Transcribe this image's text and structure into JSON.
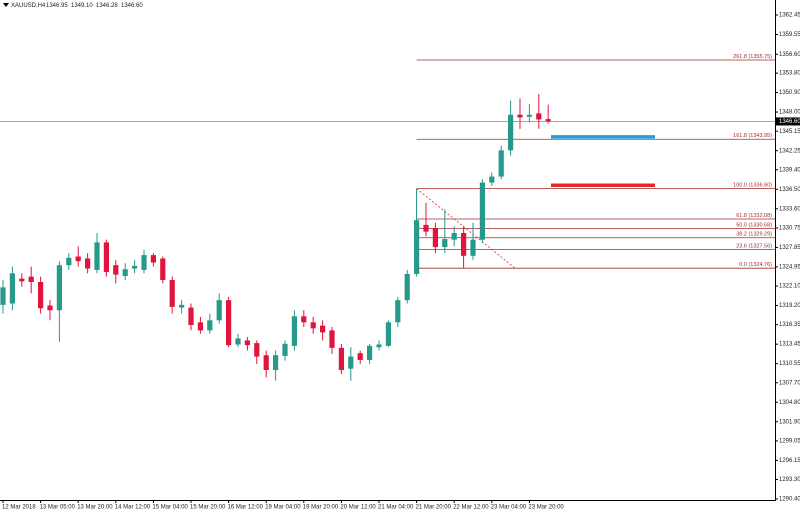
{
  "chart_data": {
    "type": "candlestick",
    "title": "XAUUSD,H4",
    "ohlc_label": [
      "1346.95",
      "1349.10",
      "1346.28",
      "1346.60"
    ],
    "up_color": "#26998b",
    "down_color": "#e0143c",
    "categories": [
      "12 Mar 2018",
      null,
      null,
      null,
      "13 Mar 05:00",
      null,
      null,
      null,
      "13 Mar 20:00",
      null,
      null,
      null,
      "14 Mar 12:00",
      null,
      null,
      null,
      "15 Mar 04:00",
      null,
      null,
      null,
      "15 Mar 20:00",
      null,
      null,
      null,
      "16 Mar 12:00",
      null,
      null,
      null,
      "19 Mar 04:00",
      null,
      null,
      null,
      "19 Mar 20:00",
      null,
      null,
      null,
      "20 Mar 12:00",
      null,
      null,
      null,
      "21 Mar 04:00",
      null,
      null,
      null,
      "21 Mar 20:00",
      null,
      null,
      null,
      "22 Mar 12:00",
      null,
      null,
      null,
      "23 Mar 04:00",
      null,
      null,
      null,
      "23 Mar 20:00",
      null,
      null
    ],
    "open": [
      1319.3,
      1319.5,
      1323.2,
      1323.5,
      1322.7,
      1319.2,
      1318.5,
      1325.2,
      1326.5,
      1326.2,
      1324.5,
      1328.6,
      1325.2,
      1323.6,
      1324.7,
      1324.5,
      1326.7,
      1326.2,
      1323.0,
      1318.9,
      1318.9,
      1316.7,
      1315.5,
      1317.0,
      1320.0,
      1313.4,
      1314.0,
      1313.6,
      1311.8,
      1309.6,
      1311.7,
      1313.2,
      1317.6,
      1316.7,
      1316.2,
      1315.5,
      1312.9,
      1309.8,
      1312.1,
      1311.1,
      1313.0,
      1313.2,
      1316.7,
      1320.0,
      1323.9,
      1331.2,
      1330.7,
      1327.9,
      1329.0,
      1330.0,
      1326.6,
      1329.0,
      1337.5,
      1338.4,
      1342.3,
      1347.6,
      1347.3,
      1347.8,
      1346.95
    ],
    "high": [
      1323.0,
      1325.0,
      1324.0,
      1325.0,
      1323.5,
      1320.0,
      1325.8,
      1327.0,
      1328.0,
      1327.0,
      1330.0,
      1329.0,
      1326.0,
      1325.5,
      1326.0,
      1327.5,
      1327.0,
      1326.5,
      1323.5,
      1320.0,
      1319.5,
      1317.5,
      1318.0,
      1321.0,
      1320.5,
      1315.0,
      1314.5,
      1314.0,
      1312.5,
      1312.5,
      1314.0,
      1318.5,
      1318.5,
      1317.5,
      1317.0,
      1316.0,
      1313.5,
      1313.0,
      1312.5,
      1313.5,
      1314.0,
      1317.0,
      1320.5,
      1324.5,
      1336.6,
      1334.5,
      1331.5,
      1333.5,
      1331.0,
      1331.0,
      1331.5,
      1338.0,
      1339.0,
      1343.0,
      1349.7,
      1350.0,
      1349.2,
      1350.7,
      1349.1
    ],
    "low": [
      1318.0,
      1318.5,
      1322.0,
      1321.0,
      1318.0,
      1317.0,
      1313.8,
      1324.5,
      1325.0,
      1324.0,
      1324.0,
      1323.5,
      1322.5,
      1323.0,
      1324.0,
      1324.0,
      1325.0,
      1322.5,
      1318.0,
      1318.0,
      1315.5,
      1315.0,
      1315.0,
      1316.5,
      1313.0,
      1313.0,
      1312.5,
      1310.5,
      1308.5,
      1308.0,
      1311.0,
      1312.5,
      1316.0,
      1315.0,
      1314.0,
      1312.0,
      1309.0,
      1308.0,
      1310.5,
      1310.5,
      1312.5,
      1313.0,
      1316.0,
      1319.5,
      1323.5,
      1329.5,
      1327.0,
      1327.0,
      1328.0,
      1324.8,
      1326.0,
      1328.5,
      1337.0,
      1338.0,
      1341.5,
      1345.5,
      1346.5,
      1345.5,
      1346.28
    ],
    "close": [
      1321.9,
      1324.0,
      1322.8,
      1322.7,
      1318.8,
      1318.5,
      1325.2,
      1326.3,
      1325.8,
      1324.7,
      1328.6,
      1324.2,
      1323.8,
      1324.6,
      1325.1,
      1326.7,
      1325.6,
      1323.0,
      1319.0,
      1319.3,
      1316.3,
      1315.5,
      1317.0,
      1320.0,
      1313.3,
      1314.3,
      1313.3,
      1311.6,
      1309.6,
      1311.8,
      1313.5,
      1317.6,
      1316.7,
      1315.8,
      1315.2,
      1312.9,
      1309.6,
      1311.6,
      1311.1,
      1313.2,
      1313.4,
      1316.7,
      1320.0,
      1323.9,
      1331.9,
      1330.2,
      1327.9,
      1329.1,
      1330.0,
      1326.6,
      1329.0,
      1337.5,
      1338.4,
      1342.3,
      1347.6,
      1347.2,
      1347.6,
      1346.9,
      1346.6
    ],
    "ylim": [
      1290.25,
      1364.68
    ],
    "yticks": [
      1362.45,
      1359.55,
      {
        "value": 1356.6,
        "label": "1356.60"
      },
      {
        "value": 1353.8,
        "label": "1353.80"
      },
      {
        "value": 1350.9,
        "label": "1350.90"
      },
      {
        "value": 1348,
        "label": "1348.00"
      },
      1345.15,
      1342.25,
      {
        "value": 1339.4,
        "label": "1339.40"
      },
      {
        "value": 1336.5,
        "label": "1336.50"
      },
      {
        "value": 1333.6,
        "label": "1333.60"
      },
      1330.75,
      1327.85,
      1324.95,
      {
        "value": 1322.1,
        "label": "1322.10"
      },
      {
        "value": 1319.2,
        "label": "1319.20"
      },
      1316.35,
      1313.45,
      1310.55,
      {
        "value": 1307.7,
        "label": "1307.70"
      },
      {
        "value": 1304.8,
        "label": "1304.80"
      },
      {
        "value": 1301.9,
        "label": "1301.90"
      },
      1299.05,
      1296.15,
      {
        "value": 1293.3,
        "label": "1293.30"
      },
      {
        "value": 1290.4,
        "label": "1290.40"
      }
    ],
    "bid": {
      "value": 1346.6,
      "label": "1346.60"
    },
    "fib_color": "#a52a2a",
    "fib_levels": [
      {
        "value": 1355.75,
        "label": "261.8 (1355.75)"
      },
      {
        "value": 1343.95,
        "label": "161.8 (1343.95)"
      },
      {
        "value": 1336.6,
        "label": "100.0 (1336.60)"
      },
      {
        "value": 1332.08,
        "label": "61.8 (1332.08)"
      },
      {
        "value": 1330.68,
        "label": "50.0 (1330.68)"
      },
      {
        "value": 1329.29,
        "label": "38.2 (1329.29)"
      },
      {
        "value": 1327.56,
        "label": "23.6 (1327.56)"
      },
      {
        "value": 1324.76,
        "label": "0.0 (1324.76)"
      }
    ],
    "lines": [
      {
        "value": 1344.3,
        "color": "#1ea0e0"
      },
      {
        "value": 1337.1,
        "color": "#e02828"
      }
    ]
  }
}
